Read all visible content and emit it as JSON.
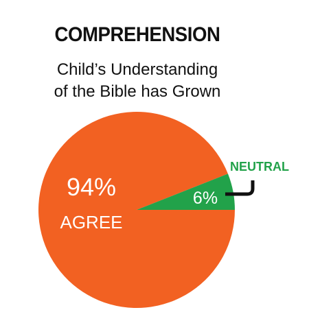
{
  "header": {
    "title": "COMPREHENSION",
    "subtitle_line1": "Child’s Understanding",
    "subtitle_line2": "of the Bible has Grown"
  },
  "colors": {
    "agree": "#f26122",
    "neutral": "#22a24a",
    "text_dark": "#111111",
    "text_light": "#ffffff"
  },
  "chart_data": {
    "type": "pie",
    "title": "COMPREHENSION",
    "subtitle": "Child’s Understanding of the Bible has Grown",
    "slices": [
      {
        "label": "AGREE",
        "value": 94,
        "value_label": "94%"
      },
      {
        "label": "NEUTRAL",
        "value": 6,
        "value_label": "6%"
      }
    ]
  }
}
